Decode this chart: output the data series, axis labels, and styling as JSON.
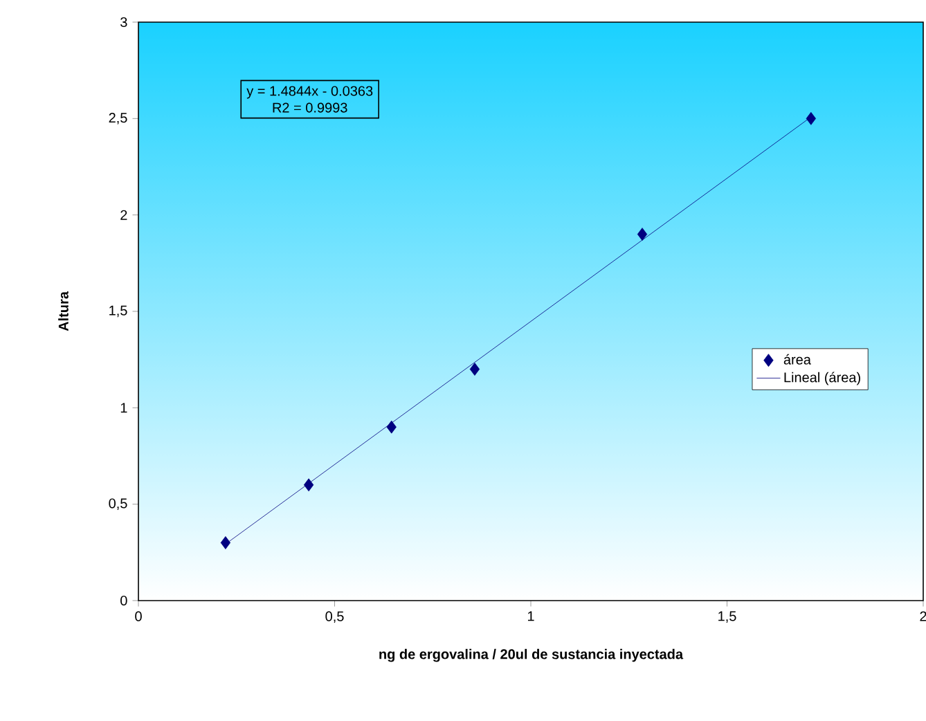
{
  "chart_data": {
    "type": "scatter",
    "xlabel": "ng de ergovalina / 20ul de sustancia inyectada",
    "ylabel": "Altura",
    "xlim": [
      0,
      2
    ],
    "ylim": [
      0,
      3
    ],
    "xticks": [
      0,
      {
        "value": 0.5,
        "label": "0,5"
      },
      1,
      {
        "value": 1.5,
        "label": "1,5"
      },
      2
    ],
    "yticks": [
      0,
      {
        "value": 0.5,
        "label": "0,5"
      },
      1,
      {
        "value": 1.5,
        "label": "1,5"
      },
      2,
      {
        "value": 2.5,
        "label": "2,5"
      },
      3
    ],
    "series": [
      {
        "name": "área",
        "type": "scatter",
        "color": "#000080",
        "marker": "diamond",
        "x": [
          0.222,
          0.434,
          0.645,
          0.857,
          1.284,
          1.714
        ],
        "values": [
          0.3,
          0.6,
          0.9,
          1.2,
          1.9,
          2.5
        ]
      },
      {
        "name": "Lineal (área)",
        "type": "line",
        "color": "#000080",
        "marker": "none",
        "line_style": "solid",
        "x": [
          0.222,
          1.714
        ],
        "values": [
          0.293,
          2.508
        ]
      }
    ],
    "annotations": [
      "y = 1.4844x - 0.0363",
      "R2 = 0.9993"
    ],
    "legend": "right",
    "grid": false
  }
}
